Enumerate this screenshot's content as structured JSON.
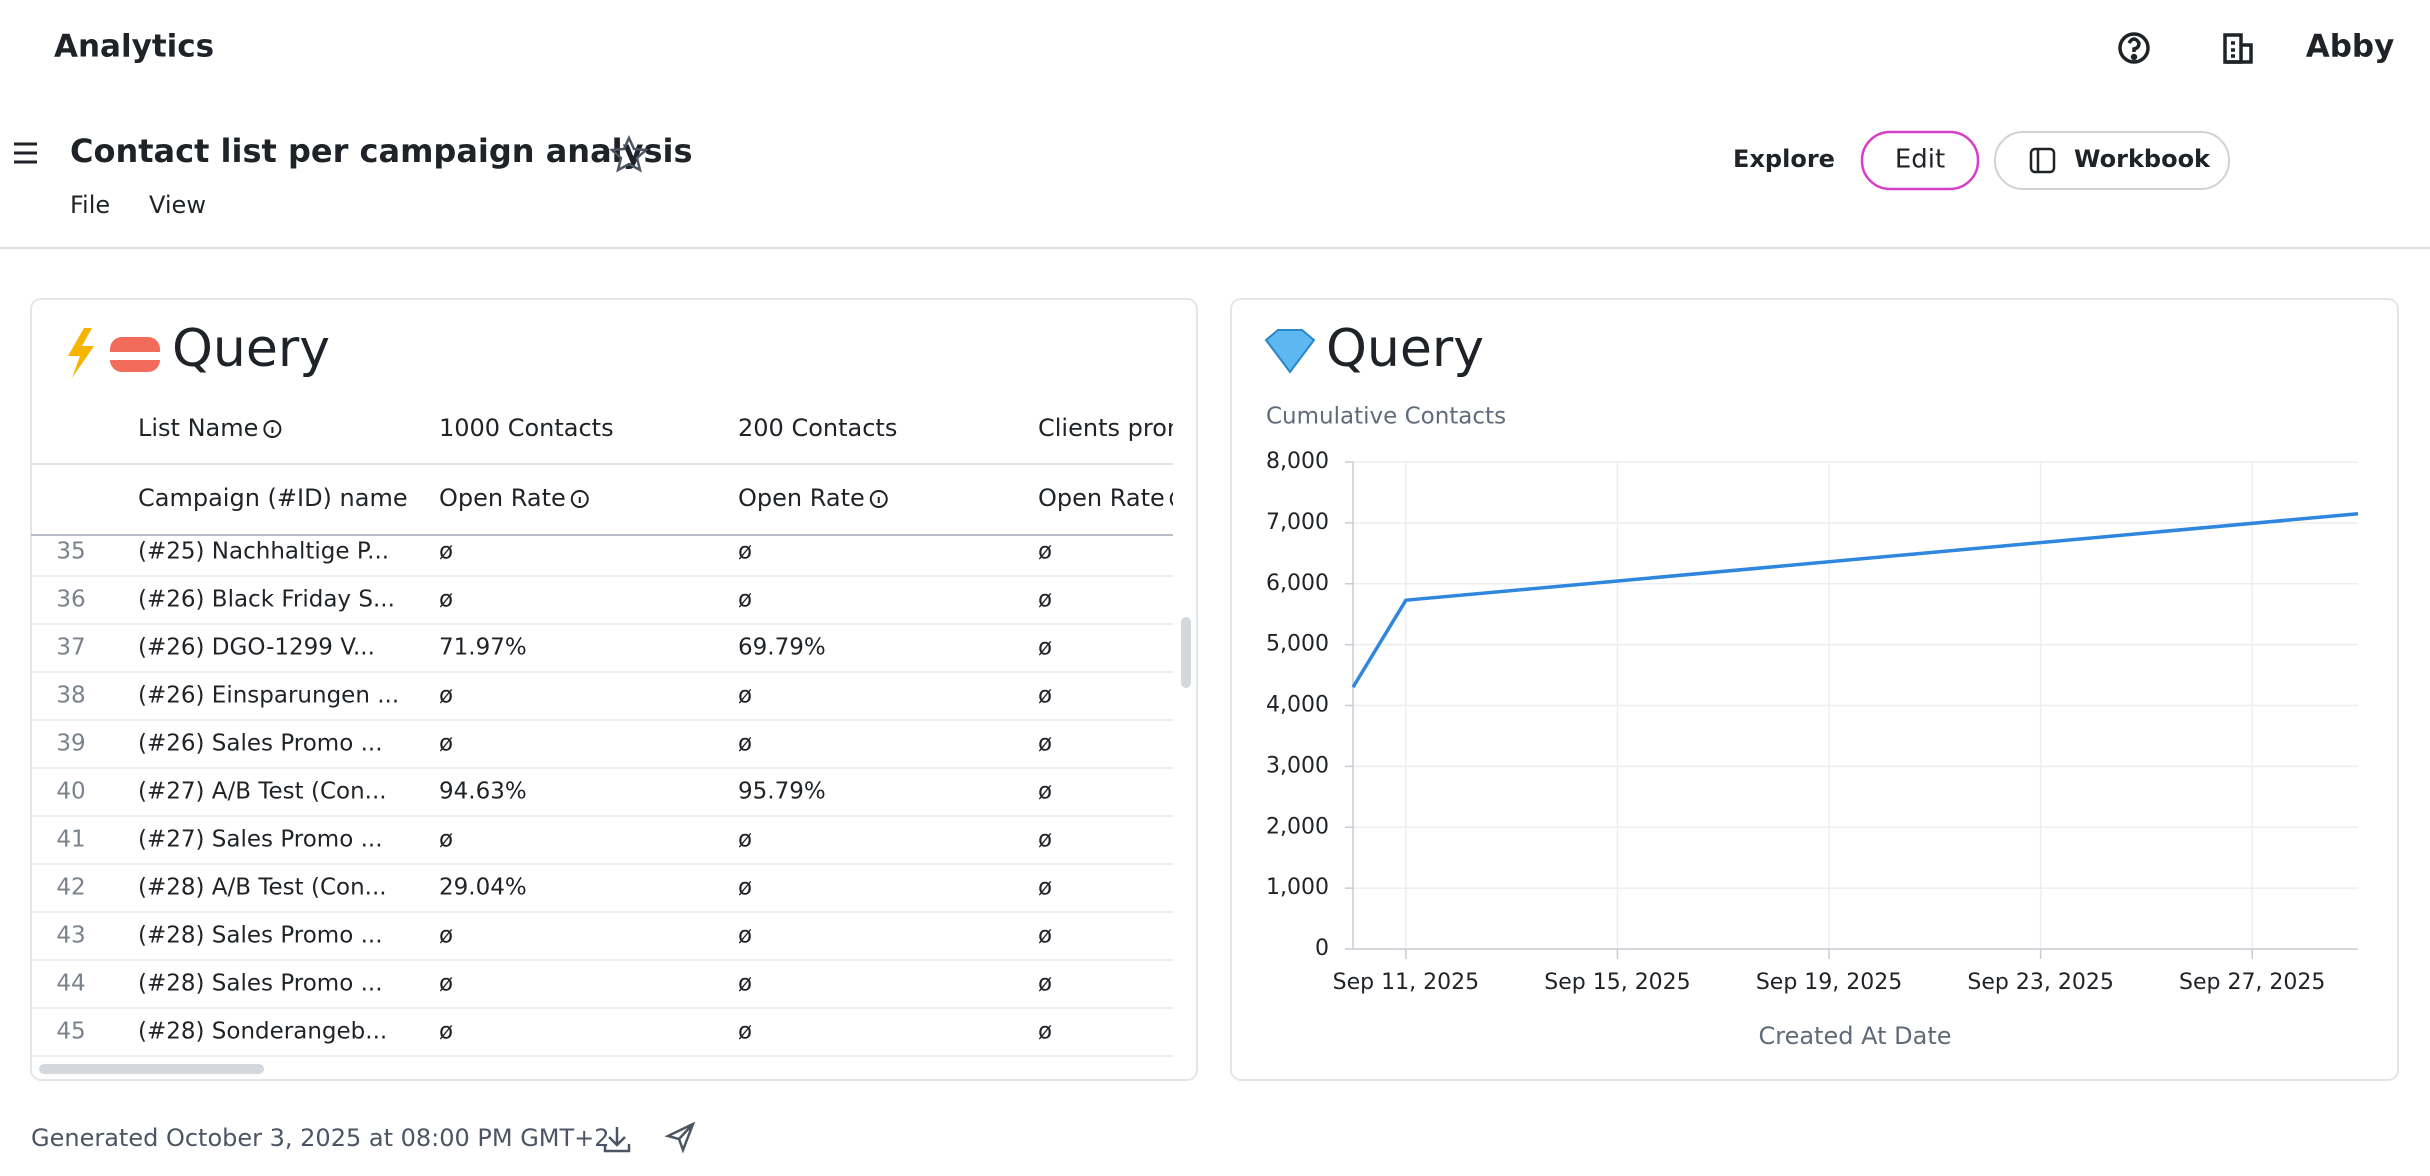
{
  "header": {
    "app_title": "Analytics",
    "user": "Abby"
  },
  "toolbar": {
    "title": "Contact list per campaign analysis",
    "menu": [
      "File",
      "View"
    ],
    "actions": [
      "Explore",
      "Edit",
      "Workbook"
    ]
  },
  "table_panel": {
    "title": "Query",
    "header_rows": [
      [
        "List Name",
        "1000 Contacts",
        "200 Contacts",
        "Clients prom"
      ],
      [
        "Campaign (#ID) name",
        "Open Rate",
        "Open Rate",
        "Open Rate"
      ]
    ],
    "rows": [
      [
        35,
        "(#25) Nachhaltige P...",
        "ø",
        "ø",
        "ø"
      ],
      [
        36,
        "(#26) Black Friday S...",
        "ø",
        "ø",
        "ø"
      ],
      [
        37,
        "(#26) DGO-1299 V...",
        "71.97%",
        "69.79%",
        "ø"
      ],
      [
        38,
        "(#26) Einsparungen ...",
        "ø",
        "ø",
        "ø"
      ],
      [
        39,
        "(#26) Sales Promo ...",
        "ø",
        "ø",
        "ø"
      ],
      [
        40,
        "(#27) A/B Test (Con...",
        "94.63%",
        "95.79%",
        "ø"
      ],
      [
        41,
        "(#27) Sales Promo ...",
        "ø",
        "ø",
        "ø"
      ],
      [
        42,
        "(#28) A/B Test (Con...",
        "29.04%",
        "ø",
        "ø"
      ],
      [
        43,
        "(#28) Sales Promo ...",
        "ø",
        "ø",
        "ø"
      ],
      [
        44,
        "(#28) Sales Promo ...",
        "ø",
        "ø",
        "ø"
      ],
      [
        45,
        "(#28) Sonderangeb...",
        "ø",
        "ø",
        "ø"
      ]
    ]
  },
  "chart_data": {
    "type": "line",
    "title": "Query",
    "y_label": "Cumulative Contacts",
    "x_label": "Created At Date",
    "x": [
      "Sep 10, 2025",
      "Sep 11, 2025",
      "Sep 29, 2025"
    ],
    "values": [
      4300,
      5730,
      7150
    ],
    "color": "#2f86dd",
    "xlim": [
      "Sep 10, 2025",
      "Sep 29, 2025"
    ],
    "xticks": [
      "Sep 11, 2025",
      "Sep 15, 2025",
      "Sep 19, 2025",
      "Sep 23, 2025",
      "Sep 27, 2025"
    ],
    "ylim": [
      0,
      8000
    ],
    "yticks": [
      0,
      {
        "value": 1000,
        "label": "1,000"
      },
      {
        "value": 2000,
        "label": "2,000"
      },
      {
        "value": 3000,
        "label": "3,000"
      },
      {
        "value": 4000,
        "label": "4,000"
      },
      {
        "value": 5000,
        "label": "5,000"
      },
      {
        "value": 6000,
        "label": "6,000"
      },
      {
        "value": 7000,
        "label": "7,000"
      },
      {
        "value": 8000,
        "label": "8,000"
      }
    ],
    "grid": true
  },
  "footer": {
    "generated": "Generated October 3, 2025 at 08:00 PM GMT+2"
  }
}
